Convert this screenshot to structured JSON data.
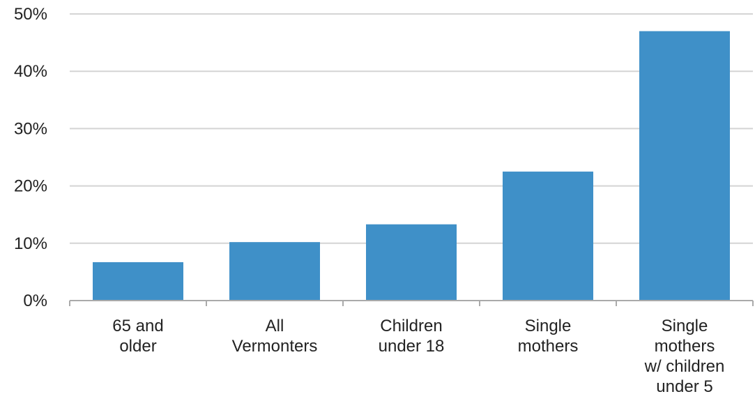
{
  "chart_data": {
    "type": "bar",
    "title": "",
    "xlabel": "",
    "ylabel": "",
    "categories": [
      [
        "65 and",
        "older"
      ],
      [
        "All",
        "Vermonters"
      ],
      [
        "Children",
        "under 18"
      ],
      [
        "Single",
        "mothers"
      ],
      [
        "Single",
        "mothers",
        "w/ children",
        "under 5"
      ]
    ],
    "values": [
      6.7,
      10.2,
      13.3,
      22.5,
      47.0
    ],
    "ylim": [
      0,
      50
    ],
    "yticks": [
      0,
      10,
      20,
      30,
      40,
      50
    ],
    "ytick_labels": [
      "0%",
      "10%",
      "20%",
      "30%",
      "40%",
      "50%"
    ],
    "grid": true,
    "legend": "none",
    "bar_color": "#3f90c8",
    "grid_color": "#d4d4d4",
    "axis_color": "#aaaaaa"
  }
}
